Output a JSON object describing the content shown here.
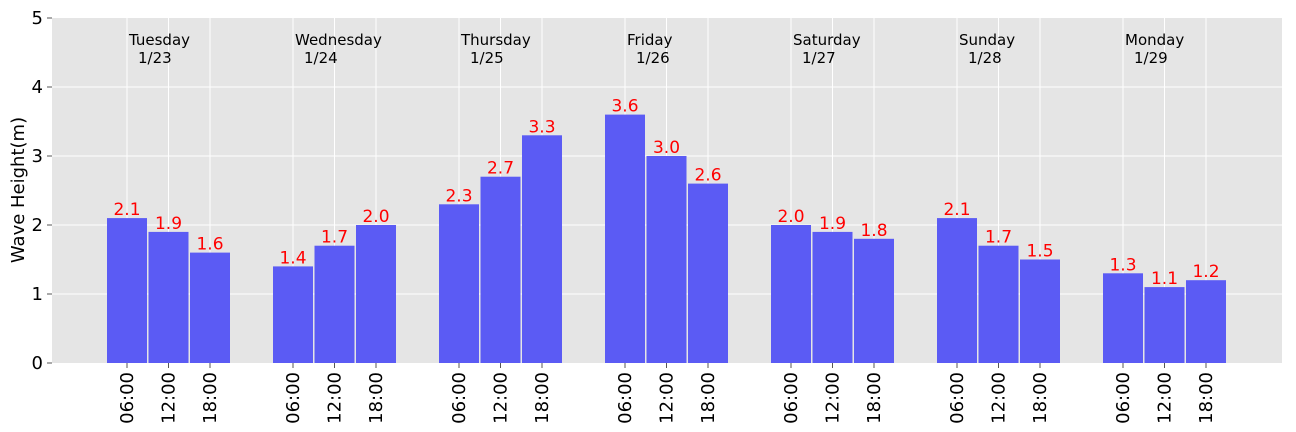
{
  "chart_data": {
    "type": "bar",
    "title": "",
    "xlabel": "",
    "ylabel": "Wave Height(m)",
    "ylim": [
      0,
      5
    ],
    "yticks": [
      "0",
      "1",
      "2",
      "3",
      "4",
      "5"
    ],
    "grid": true,
    "colors": {
      "background": "#e5e5e5",
      "bar": "#5b5bf4",
      "value_label": "#ff0000",
      "grid": "#ffffff"
    },
    "days": [
      {
        "name": "Tuesday",
        "date": "1/23",
        "times": [
          "06:00",
          "12:00",
          "18:00"
        ],
        "values": [
          2.1,
          1.9,
          1.6
        ],
        "labels": [
          "2.1",
          "1.9",
          "1.6"
        ]
      },
      {
        "name": "Wednesday",
        "date": "1/24",
        "times": [
          "06:00",
          "12:00",
          "18:00"
        ],
        "values": [
          1.4,
          1.7,
          2.0
        ],
        "labels": [
          "1.4",
          "1.7",
          "2.0"
        ]
      },
      {
        "name": "Thursday",
        "date": "1/25",
        "times": [
          "06:00",
          "12:00",
          "18:00"
        ],
        "values": [
          2.3,
          2.7,
          3.3
        ],
        "labels": [
          "2.3",
          "2.7",
          "3.3"
        ]
      },
      {
        "name": "Friday",
        "date": "1/26",
        "times": [
          "06:00",
          "12:00",
          "18:00"
        ],
        "values": [
          3.6,
          3.0,
          2.6
        ],
        "labels": [
          "3.6",
          "3.0",
          "2.6"
        ]
      },
      {
        "name": "Saturday",
        "date": "1/27",
        "times": [
          "06:00",
          "12:00",
          "18:00"
        ],
        "values": [
          2.0,
          1.9,
          1.8
        ],
        "labels": [
          "2.0",
          "1.9",
          "1.8"
        ]
      },
      {
        "name": "Sunday",
        "date": "1/28",
        "times": [
          "06:00",
          "12:00",
          "18:00"
        ],
        "values": [
          2.1,
          1.7,
          1.5
        ],
        "labels": [
          "2.1",
          "1.7",
          "1.5"
        ]
      },
      {
        "name": "Monday",
        "date": "1/29",
        "times": [
          "06:00",
          "12:00",
          "18:00"
        ],
        "values": [
          1.3,
          1.1,
          1.2
        ],
        "labels": [
          "1.3",
          "1.1",
          "1.2"
        ]
      }
    ]
  }
}
